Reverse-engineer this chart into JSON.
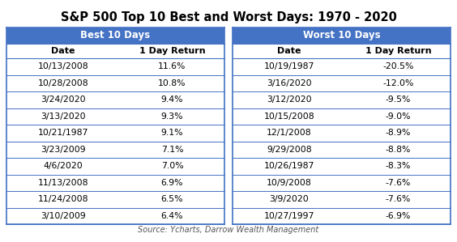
{
  "title": "S&P 500 Top 10 Best and Worst Days: 1970 - 2020",
  "source": "Source: Ycharts, Darrow Wealth Management",
  "best_header": "Best 10 Days",
  "worst_header": "Worst 10 Days",
  "col_headers": [
    "Date",
    "1 Day Return"
  ],
  "best_dates": [
    "10/13/2008",
    "10/28/2008",
    "3/24/2020",
    "3/13/2020",
    "10/21/1987",
    "3/23/2009",
    "4/6/2020",
    "11/13/2008",
    "11/24/2008",
    "3/10/2009"
  ],
  "best_returns": [
    "11.6%",
    "10.8%",
    "9.4%",
    "9.3%",
    "9.1%",
    "7.1%",
    "7.0%",
    "6.9%",
    "6.5%",
    "6.4%"
  ],
  "worst_dates": [
    "10/19/1987",
    "3/16/2020",
    "3/12/2020",
    "10/15/2008",
    "12/1/2008",
    "9/29/2008",
    "10/26/1987",
    "10/9/2008",
    "3/9/2020",
    "10/27/1997"
  ],
  "worst_returns": [
    "-20.5%",
    "-12.0%",
    "-9.5%",
    "-9.0%",
    "-8.9%",
    "-8.8%",
    "-8.3%",
    "-7.6%",
    "-7.6%",
    "-6.9%"
  ],
  "header_bg": "#4472C4",
  "header_fg": "#FFFFFF",
  "divider_color": "#4472C4",
  "title_fontsize": 10.5,
  "header_fontsize": 8.5,
  "col_header_fontsize": 8,
  "data_fontsize": 7.8,
  "source_fontsize": 7
}
